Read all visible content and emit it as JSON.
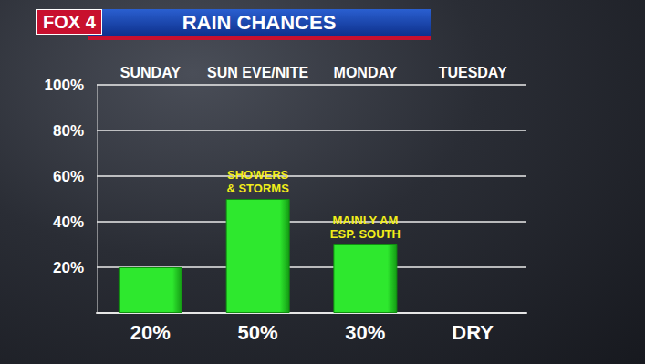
{
  "chart_data": {
    "type": "bar",
    "title": "RAIN CHANCES",
    "logo": "FOX 4",
    "categories": [
      "SUNDAY",
      "SUN EVE/NITE",
      "MONDAY",
      "TUESDAY"
    ],
    "values": [
      20,
      50,
      30,
      null
    ],
    "value_labels": [
      "20%",
      "50%",
      "30%",
      "DRY"
    ],
    "data_labels": true,
    "annotations": [
      {
        "category": "SUN EVE/NITE",
        "text": "SHOWERS\n& STORMS"
      },
      {
        "category": "MONDAY",
        "text": "MAINLY AM\nESP. SOUTH"
      }
    ],
    "color": "#2ee82e",
    "ylim": [
      0,
      100
    ],
    "yticks": [
      {
        "value": 20,
        "label": "20%"
      },
      {
        "value": 40,
        "label": "40%"
      },
      {
        "value": 60,
        "label": "60%"
      },
      {
        "value": 80,
        "label": "80%"
      },
      {
        "value": 100,
        "label": "100%"
      }
    ],
    "grid": true
  }
}
